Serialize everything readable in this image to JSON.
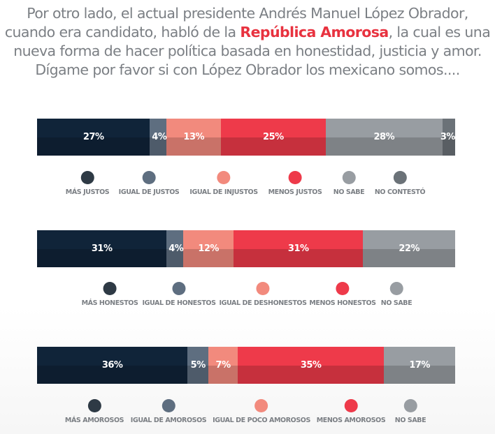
{
  "title": {
    "before": "Por otro lado, el actual presidente Andrés Manuel López Obrador, cuando era candidato, habló de la ",
    "highlight": "República Amorosa",
    "after": ", la cual es una nueva forma de hacer política basada en honestidad, justicia y amor. Dígame por favor si con López Obrador los mexicano somos...."
  },
  "chart_data": [
    {
      "type": "bar",
      "stacked": true,
      "unit": "%",
      "categories": [
        "MÁS JUSTOS",
        "IGUAL DE JUSTOS",
        "IGUAL DE INJUSTOS",
        "MENOS JUSTOS",
        "NO SABE",
        "NO CONTESTÓ"
      ],
      "values": [
        27,
        4,
        13,
        25,
        28,
        3
      ],
      "colors": [
        "#102439",
        "#5e6e80",
        "#f28a7d",
        "#ee3a4a",
        "#989da2",
        "#6b7278"
      ],
      "legend_colors": [
        "#2e3a45",
        "#5e6e80",
        "#f28a7d",
        "#ee3a4a",
        "#989da2",
        "#6b7278"
      ]
    },
    {
      "type": "bar",
      "stacked": true,
      "unit": "%",
      "categories": [
        "MÁS HONESTOS",
        "IGUAL DE HONESTOS",
        "IGUAL DE DESHONESTOS",
        "MENOS HONESTOS",
        "NO SABE"
      ],
      "values": [
        31,
        4,
        12,
        31,
        22
      ],
      "colors": [
        "#102439",
        "#5e6e80",
        "#f28a7d",
        "#ee3a4a",
        "#989da2"
      ],
      "legend_colors": [
        "#2e3a45",
        "#5e6e80",
        "#f28a7d",
        "#ee3a4a",
        "#989da2"
      ]
    },
    {
      "type": "bar",
      "stacked": true,
      "unit": "%",
      "categories": [
        "MÁS AMOROSOS",
        "IGUAL DE AMOROSOS",
        "IGUAL DE POCO AMOROSOS",
        "MENOS AMOROSOS",
        "NO SABE"
      ],
      "values": [
        36,
        5,
        7,
        35,
        17
      ],
      "colors": [
        "#102439",
        "#5e6e80",
        "#f28a7d",
        "#ee3a4a",
        "#989da2"
      ],
      "legend_colors": [
        "#2e3a45",
        "#5e6e80",
        "#f28a7d",
        "#ee3a4a",
        "#989da2"
      ]
    }
  ]
}
